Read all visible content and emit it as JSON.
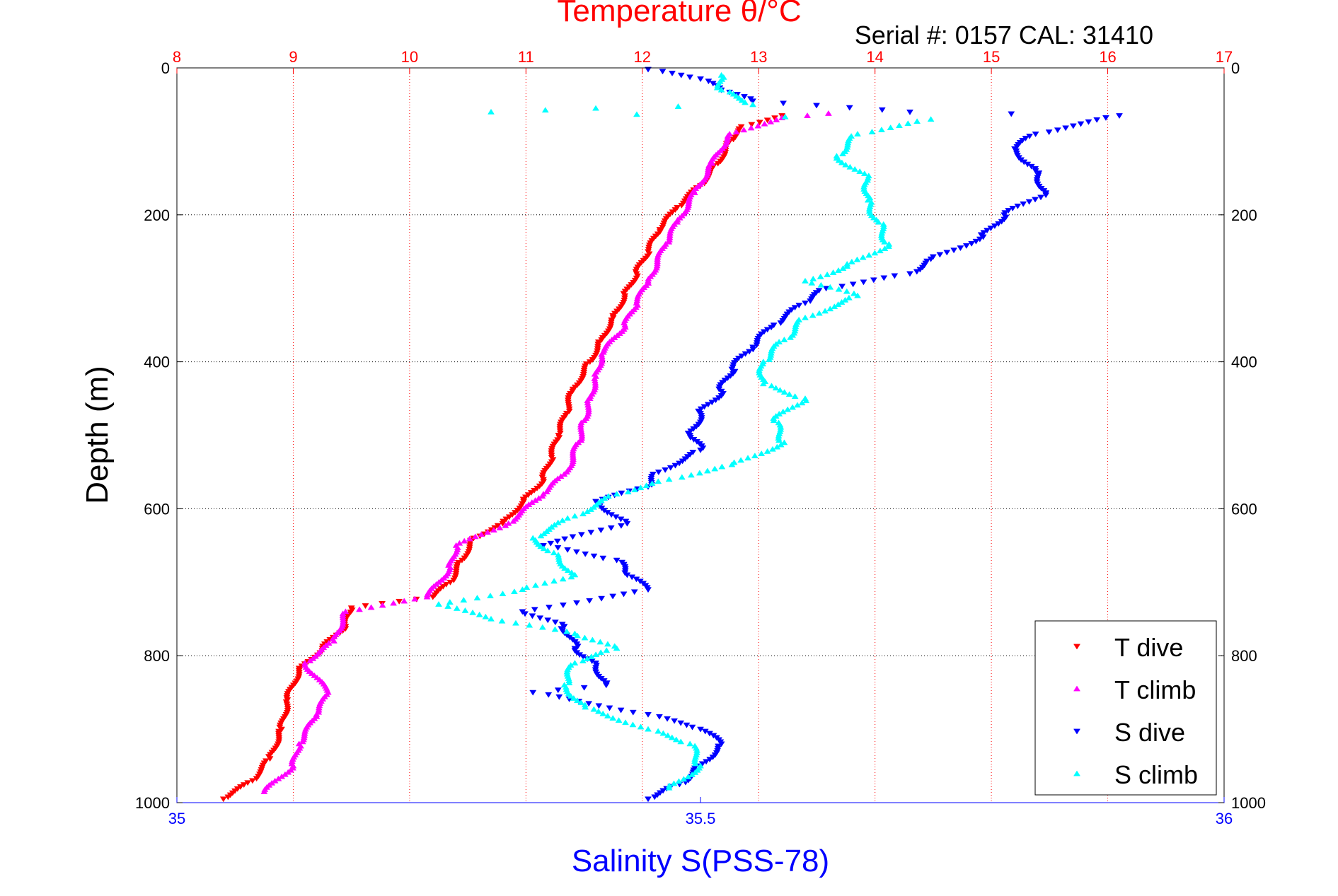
{
  "chart_data": {
    "type": "scatter",
    "title": "Temperature θ/°C",
    "subtitle": "Serial #: 0157  CAL: 31410",
    "ylabel": "Depth (m)",
    "xlabel_bottom": "Salinity S(PSS-78)",
    "depth_axis": {
      "range": [
        0,
        1000
      ],
      "reversed": true,
      "ticks": [
        0,
        200,
        400,
        600,
        800,
        1000
      ]
    },
    "temperature_axis": {
      "range": [
        8,
        17
      ],
      "position": "top",
      "ticks": [
        8,
        9,
        10,
        11,
        12,
        13,
        14,
        15,
        16,
        17
      ]
    },
    "salinity_axis": {
      "range": [
        35,
        36
      ],
      "position": "bottom",
      "ticks": [
        35,
        35.5,
        36
      ],
      "tick_labels": [
        "35",
        "35.5",
        "36"
      ]
    },
    "grid": true,
    "legend_position": "bottom-right",
    "colors": {
      "temperature_axis": "#ff0000",
      "salinity_axis": "#0000ff",
      "grid_vertical": "#ff0000",
      "grid_horizontal": "#000000"
    },
    "series": [
      {
        "name": "T dive",
        "axis": "temperature",
        "color": "#ff0000",
        "marker": "triangle-down",
        "points": [
          [
            13.2,
            65
          ],
          [
            12.85,
            80
          ],
          [
            12.75,
            100
          ],
          [
            12.65,
            130
          ],
          [
            12.5,
            160
          ],
          [
            12.3,
            190
          ],
          [
            12.15,
            220
          ],
          [
            12.05,
            250
          ],
          [
            11.95,
            280
          ],
          [
            11.85,
            310
          ],
          [
            11.75,
            340
          ],
          [
            11.65,
            370
          ],
          [
            11.55,
            400
          ],
          [
            11.4,
            440
          ],
          [
            11.35,
            470
          ],
          [
            11.28,
            500
          ],
          [
            11.22,
            530
          ],
          [
            11.15,
            560
          ],
          [
            10.98,
            590
          ],
          [
            10.8,
            620
          ],
          [
            10.55,
            640
          ],
          [
            10.45,
            670
          ],
          [
            10.35,
            700
          ],
          [
            10.2,
            720
          ],
          [
            9.5,
            735
          ],
          [
            9.45,
            760
          ],
          [
            9.25,
            790
          ],
          [
            9.05,
            820
          ],
          [
            8.95,
            860
          ],
          [
            8.9,
            900
          ],
          [
            8.8,
            940
          ],
          [
            8.65,
            970
          ],
          [
            8.4,
            995
          ]
        ]
      },
      {
        "name": "T climb",
        "axis": "temperature",
        "color": "#ff00ff",
        "marker": "triangle-up",
        "points": [
          [
            13.6,
            62
          ],
          [
            13.2,
            68
          ],
          [
            12.75,
            90
          ],
          [
            12.6,
            130
          ],
          [
            12.45,
            170
          ],
          [
            12.3,
            210
          ],
          [
            12.2,
            240
          ],
          [
            12.05,
            290
          ],
          [
            11.95,
            320
          ],
          [
            11.85,
            350
          ],
          [
            11.65,
            390
          ],
          [
            11.6,
            420
          ],
          [
            11.55,
            450
          ],
          [
            11.5,
            480
          ],
          [
            11.45,
            510
          ],
          [
            11.35,
            550
          ],
          [
            11.15,
            580
          ],
          [
            10.85,
            620
          ],
          [
            10.4,
            650
          ],
          [
            10.35,
            680
          ],
          [
            10.15,
            720
          ],
          [
            9.45,
            740
          ],
          [
            9.35,
            780
          ],
          [
            9.1,
            810
          ],
          [
            9.3,
            850
          ],
          [
            9.2,
            880
          ],
          [
            9.05,
            920
          ],
          [
            9.0,
            950
          ],
          [
            8.75,
            985
          ]
        ]
      },
      {
        "name": "S dive",
        "axis": "salinity",
        "color": "#0000ff",
        "marker": "triangle-down",
        "points": [
          [
            35.45,
            2
          ],
          [
            35.5,
            15
          ],
          [
            35.52,
            30
          ],
          [
            35.55,
            45
          ],
          [
            35.7,
            60
          ],
          [
            35.9,
            65
          ],
          [
            35.82,
            90
          ],
          [
            35.8,
            110
          ],
          [
            35.82,
            140
          ],
          [
            35.83,
            170
          ],
          [
            35.79,
            200
          ],
          [
            35.77,
            230
          ],
          [
            35.72,
            260
          ],
          [
            35.7,
            280
          ],
          [
            35.62,
            300
          ],
          [
            35.6,
            320
          ],
          [
            35.57,
            350
          ],
          [
            35.55,
            380
          ],
          [
            35.53,
            410
          ],
          [
            35.52,
            440
          ],
          [
            35.5,
            470
          ],
          [
            35.49,
            500
          ],
          [
            35.5,
            520
          ],
          [
            35.46,
            550
          ],
          [
            35.45,
            570
          ],
          [
            35.4,
            590
          ],
          [
            35.43,
            620
          ],
          [
            35.35,
            650
          ],
          [
            35.42,
            670
          ],
          [
            35.43,
            690
          ],
          [
            35.45,
            710
          ],
          [
            35.33,
            740
          ],
          [
            35.37,
            760
          ],
          [
            35.38,
            790
          ],
          [
            35.4,
            810
          ],
          [
            35.41,
            840
          ],
          [
            35.34,
            850
          ],
          [
            35.45,
            880
          ],
          [
            35.5,
            900
          ],
          [
            35.52,
            920
          ],
          [
            35.5,
            950
          ],
          [
            35.48,
            975
          ],
          [
            35.45,
            995
          ]
        ]
      },
      {
        "name": "S climb",
        "axis": "salinity",
        "color": "#00ffff",
        "marker": "triangle-up",
        "points": [
          [
            35.52,
            10
          ],
          [
            35.52,
            30
          ],
          [
            35.55,
            50
          ],
          [
            35.4,
            55
          ],
          [
            35.3,
            60
          ],
          [
            35.72,
            70
          ],
          [
            35.65,
            90
          ],
          [
            35.63,
            120
          ],
          [
            35.66,
            150
          ],
          [
            35.66,
            180
          ],
          [
            35.67,
            210
          ],
          [
            35.68,
            240
          ],
          [
            35.64,
            270
          ],
          [
            35.6,
            290
          ],
          [
            35.65,
            310
          ],
          [
            35.6,
            340
          ],
          [
            35.58,
            370
          ],
          [
            35.56,
            400
          ],
          [
            35.56,
            430
          ],
          [
            35.6,
            450
          ],
          [
            35.57,
            480
          ],
          [
            35.58,
            510
          ],
          [
            35.53,
            540
          ],
          [
            35.47,
            560
          ],
          [
            35.42,
            580
          ],
          [
            35.38,
            610
          ],
          [
            35.34,
            640
          ],
          [
            35.36,
            660
          ],
          [
            35.38,
            690
          ],
          [
            35.33,
            710
          ],
          [
            35.25,
            730
          ],
          [
            35.3,
            750
          ],
          [
            35.38,
            770
          ],
          [
            35.42,
            790
          ],
          [
            35.38,
            810
          ],
          [
            35.37,
            840
          ],
          [
            35.39,
            870
          ],
          [
            35.45,
            900
          ],
          [
            35.49,
            920
          ],
          [
            35.5,
            950
          ],
          [
            35.47,
            980
          ]
        ]
      }
    ]
  }
}
